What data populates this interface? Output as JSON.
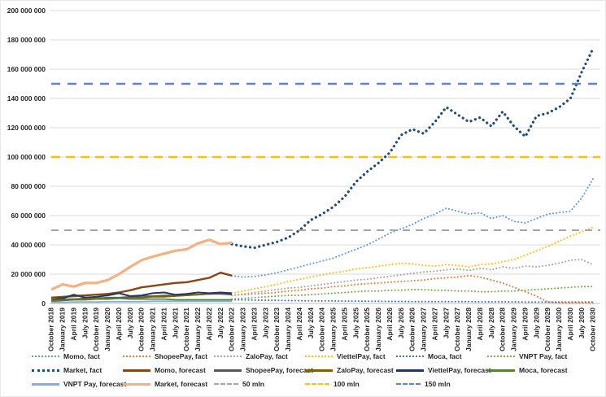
{
  "y_axis": {
    "labels": [
      "200 000 000",
      "180 000 000",
      "160 000 000",
      "140 000 000",
      "120 000 000",
      "100 000 000",
      "80 000 000",
      "60 000 000",
      "40 000 000",
      "20 000 000",
      "0"
    ],
    "max_mln": 200,
    "step_mln": 20
  },
  "x_axis": {
    "labels": [
      "October 2018",
      "January 2019",
      "April 2019",
      "July 2019",
      "October 2019",
      "January 2020",
      "April 2020",
      "July 2020",
      "October 2020",
      "January 2021",
      "April 2021",
      "July 2021",
      "October 2021",
      "January 2022",
      "April 2022",
      "July 2022",
      "October 2022",
      "January 2023",
      "April 2023",
      "July 2023",
      "October 2023",
      "January 2024",
      "April 2024",
      "July 2024",
      "October 2024",
      "January 2025",
      "April 2025",
      "July 2025",
      "October 2025",
      "January 2026",
      "April 2026",
      "July 2026",
      "October 2026",
      "January 2027",
      "April 2027",
      "July 2027",
      "October 2027",
      "January 2028",
      "April 2028",
      "July 2028",
      "October 2028",
      "January 2029",
      "April 2029",
      "July 2029",
      "October 2029",
      "January 2030",
      "April 2030",
      "July 2030",
      "October 2030"
    ]
  },
  "colors": {
    "grid": "#D9D9D9",
    "axis": "#BFBFBF",
    "text": "#262626"
  },
  "chart_data": {
    "type": "line",
    "title": "",
    "ylim_mln": [
      0,
      200
    ],
    "x_months_total": 144,
    "grid": "horizontal-only",
    "legend_position": "bottom",
    "ref_lines": [
      {
        "key": "50-mln",
        "label": "50 mln",
        "value_mln": 50,
        "color": "#A5A5A5",
        "width": 2,
        "dash": "9 7"
      },
      {
        "key": "100-mln",
        "label": "100 mln",
        "value_mln": 100,
        "color": "#FFC000",
        "width": 2.6,
        "dash": "11 7"
      },
      {
        "key": "150-mln",
        "label": "150 mln",
        "value_mln": 150,
        "color": "#5B83CE",
        "width": 2.6,
        "dash": "11 9"
      }
    ],
    "series": [
      {
        "key": "momo-fact",
        "name": "Momo, fact",
        "color": "#5B9BD5",
        "style": "dotted",
        "width": 2,
        "start_month": 48,
        "step_months": 3,
        "values_mln": [
          19,
          18,
          18.5,
          19.5,
          21,
          23,
          25,
          27,
          29,
          31,
          34,
          37,
          40,
          44,
          48,
          51,
          54,
          58,
          61,
          65,
          63,
          61,
          62,
          58,
          60,
          56,
          55,
          58,
          61,
          62,
          63,
          72,
          85
        ]
      },
      {
        "key": "shopeepay-fact",
        "name": "ShopeePay, fact",
        "color": "#ED7D31",
        "style": "dotted",
        "width": 2,
        "start_month": 48,
        "step_months": 3,
        "values_mln": [
          5.5,
          6,
          6.5,
          7,
          7.5,
          8.5,
          9,
          10,
          10.5,
          11.5,
          12,
          13,
          13.5,
          14,
          14.5,
          15,
          15.5,
          16,
          17,
          17.5,
          18,
          19,
          18,
          16,
          14,
          11,
          8,
          5,
          1,
          0.4,
          0.3,
          0.3,
          0.3
        ]
      },
      {
        "key": "zalopay-fact",
        "name": "ZaloPay, fact",
        "color": "#A5A5A5",
        "style": "dotted",
        "width": 2,
        "start_month": 48,
        "step_months": 3,
        "values_mln": [
          5.5,
          6.5,
          7.5,
          8.5,
          9.5,
          10.5,
          11,
          12,
          13,
          14,
          15,
          16,
          16.5,
          17.5,
          18.5,
          19.5,
          20.5,
          21.5,
          22,
          23,
          23.5,
          22.5,
          24,
          23,
          25,
          24,
          25.5,
          25,
          26,
          27.5,
          29.5,
          30,
          26.5
        ]
      },
      {
        "key": "viettelpay-fact",
        "name": "ViettelPay, fact",
        "color": "#FFC000",
        "style": "dotted",
        "width": 2,
        "start_month": 48,
        "step_months": 3,
        "values_mln": [
          7,
          8.5,
          10,
          11.5,
          13,
          15,
          16.5,
          18,
          19.5,
          21,
          22,
          23.5,
          24.5,
          25.5,
          26.5,
          27.5,
          27,
          26,
          25.5,
          26.5,
          26,
          25,
          26.5,
          27,
          28.5,
          30,
          33,
          36,
          39,
          42.5,
          46,
          49,
          52
        ]
      },
      {
        "key": "moca-fact",
        "name": "Moca, fact",
        "color": "#4472C4",
        "style": "dotted",
        "width": 2,
        "start_month": 48,
        "step_months": 3,
        "values_mln": [
          2.5,
          2.4,
          2.3,
          2.2,
          2.1,
          2,
          1.9,
          1.8,
          1.7,
          1.7,
          1.6,
          1.6,
          1.5,
          1.5,
          1.4,
          1.4,
          1.3,
          1.3,
          1.3,
          1.2,
          1.2,
          1.2,
          1.1,
          1.1,
          1.1,
          1.1,
          1,
          1,
          1,
          1,
          1,
          1,
          1
        ]
      },
      {
        "key": "vnpt-pay-fact",
        "name": "VNPT Pay, fact",
        "color": "#70AD47",
        "style": "dotted",
        "width": 2,
        "start_month": 48,
        "step_months": 3,
        "values_mln": [
          3,
          3.5,
          4,
          4.5,
          5,
          5.5,
          5.5,
          6,
          6.5,
          7,
          7.5,
          8,
          8.5,
          8.5,
          9,
          9,
          9.5,
          9.5,
          9,
          9,
          8.5,
          8.5,
          8,
          8,
          8.5,
          8.5,
          9,
          9.5,
          10,
          10.5,
          11,
          11.5,
          11.5
        ]
      },
      {
        "key": "market-fact",
        "name": "Market, fact",
        "color": "#1F4E79",
        "style": "bigdot",
        "width": 3.2,
        "start_month": 48,
        "step_months": 3,
        "values_mln": [
          40.5,
          39,
          38,
          40,
          42,
          45,
          50,
          57,
          61,
          66,
          73,
          83,
          90,
          96,
          103,
          115,
          119,
          116,
          124,
          134,
          129,
          124,
          127,
          121,
          131,
          121,
          114,
          128,
          130,
          134,
          140,
          158,
          174
        ]
      },
      {
        "key": "momo-forecast",
        "name": "Momo, forecast",
        "color": "#8B4513",
        "style": "solid",
        "width": 2.4,
        "start_month": 0,
        "step_months": 3,
        "values_mln": [
          4,
          4.5,
          5,
          5.5,
          6,
          6.5,
          7.5,
          9,
          11,
          12,
          13,
          14,
          14.5,
          16,
          17.5,
          21,
          19
        ]
      },
      {
        "key": "shopeepay-forecast",
        "name": "ShopeePay, forecast",
        "color": "#595959",
        "style": "solid",
        "width": 1.8,
        "start_month": 0,
        "step_months": 3,
        "values_mln": [
          2.5,
          3,
          3,
          3.5,
          3.5,
          4,
          4,
          4.5,
          5,
          5,
          5.5,
          5.5,
          6,
          6,
          6.5,
          6.5,
          6
        ]
      },
      {
        "key": "zalopay-forecast",
        "name": "ZaloPay, forecast",
        "color": "#806000",
        "style": "solid",
        "width": 1.8,
        "start_month": 0,
        "step_months": 3,
        "values_mln": [
          1.5,
          2,
          2.5,
          2.5,
          3,
          3,
          3.5,
          4,
          4,
          4.5,
          4.5,
          5,
          5.5,
          6,
          6.5,
          7,
          7
        ]
      },
      {
        "key": "viettelpay-forecast",
        "name": "ViettelPay, forecast",
        "color": "#1F3864",
        "style": "solid",
        "width": 2,
        "start_month": 0,
        "step_months": 3,
        "values_mln": [
          2.5,
          3.5,
          6,
          4,
          4.5,
          5.5,
          7,
          5,
          5.5,
          7,
          7.5,
          6,
          6.5,
          7.5,
          7,
          7.5,
          7
        ]
      },
      {
        "key": "moca-forecast",
        "name": "Moca, forecast",
        "color": "#538135",
        "style": "solid",
        "width": 1.8,
        "start_month": 0,
        "step_months": 3,
        "values_mln": [
          2,
          2.5,
          3,
          3,
          3.5,
          3.5,
          3.5,
          3,
          3,
          3,
          3,
          2.5,
          2.5,
          2.5,
          2.5,
          2.5,
          2.5
        ]
      },
      {
        "key": "vnpt-pay-forecast",
        "name": "VNPT Pay, forecast",
        "color": "#7FB0DF",
        "style": "solid",
        "width": 1.8,
        "start_month": 0,
        "step_months": 3,
        "values_mln": [
          0.8,
          0.8,
          1,
          1,
          1,
          1.2,
          1.2,
          1.2,
          1.2,
          1.5,
          1.5,
          1.5,
          1.5,
          1.5,
          1.5,
          1.5,
          1.5
        ]
      },
      {
        "key": "market-forecast",
        "name": "Market, forecast",
        "color": "#F4B183",
        "style": "solid",
        "width": 3.2,
        "start_month": 0,
        "step_months": 3,
        "values_mln": [
          9.5,
          13,
          11.5,
          14,
          14,
          16,
          20,
          25,
          29.5,
          32,
          34,
          36,
          37,
          41,
          43.5,
          40.5,
          41.5
        ]
      }
    ]
  },
  "legend": {
    "rows": [
      [
        {
          "key": "momo-fact",
          "label": "Momo, fact",
          "marker": "dotted",
          "color": "#5B9BD5"
        },
        {
          "key": "shopeepay-fact",
          "label": "ShopeePay, fact",
          "marker": "dotted",
          "color": "#ED7D31"
        },
        {
          "key": "zalopay-fact",
          "label": "ZaloPay, fact",
          "marker": "dotted",
          "color": "#A5A5A5"
        },
        {
          "key": "viettelpay-fact",
          "label": "ViettelPay, fact",
          "marker": "dotted",
          "color": "#FFC000"
        },
        {
          "key": "moca-fact",
          "label": "Moca, fact",
          "marker": "dotted",
          "color": "#4472C4"
        },
        {
          "key": "vnpt-pay-fact",
          "label": "VNPT Pay, fact",
          "marker": "dotted",
          "color": "#70AD47"
        }
      ],
      [
        {
          "key": "market-fact",
          "label": "Market, fact",
          "marker": "bigdot",
          "color": "#1F4E79"
        },
        {
          "key": "momo-forecast",
          "label": "Momo, forecast",
          "marker": "solid",
          "color": "#8B4513"
        },
        {
          "key": "shopeepay-forecast",
          "label": "ShopeePay, forecast",
          "marker": "solid",
          "color": "#595959"
        },
        {
          "key": "zalopay-forecast",
          "label": "ZaloPay, forecast",
          "marker": "solid",
          "color": "#806000"
        },
        {
          "key": "viettelpay-forecast",
          "label": "ViettelPay, forecast",
          "marker": "solid",
          "color": "#1F3864"
        },
        {
          "key": "moca-forecast",
          "label": "Moca, forecast",
          "marker": "solid",
          "color": "#538135"
        }
      ],
      [
        {
          "key": "vnpt-pay-forecast",
          "label": "VNPT Pay, forecast",
          "marker": "solid",
          "color": "#7FB0DF"
        },
        {
          "key": "market-forecast",
          "label": "Market, forecast",
          "marker": "solid",
          "color": "#F4B183"
        },
        {
          "key": "50-mln",
          "label": "50 mln",
          "marker": "dashed",
          "color": "#A5A5A5"
        },
        {
          "key": "100-mln",
          "label": "100 mln",
          "marker": "dashed",
          "color": "#FFC000"
        },
        {
          "key": "150-mln",
          "label": "150 mln",
          "marker": "dashed",
          "color": "#5B83CE"
        }
      ]
    ]
  }
}
